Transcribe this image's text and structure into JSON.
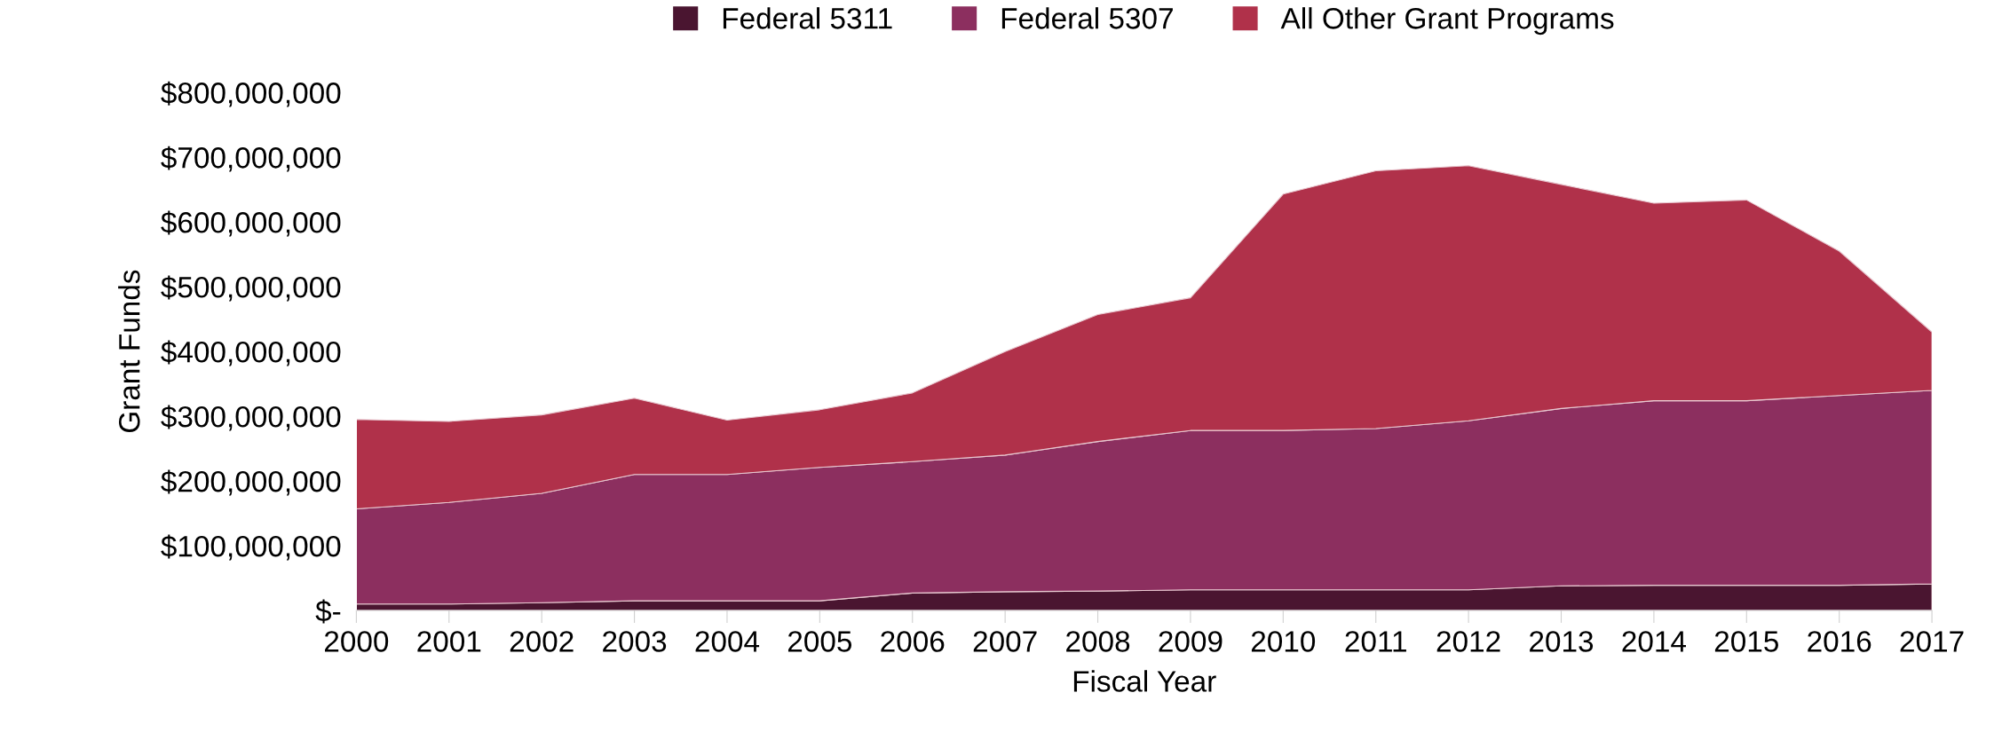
{
  "chart_data": {
    "type": "area",
    "stacked": true,
    "xlabel": "Fiscal Year",
    "ylabel": "Grant Funds",
    "categories": [
      "2000",
      "2001",
      "2002",
      "2003",
      "2004",
      "2005",
      "2006",
      "2007",
      "2008",
      "2009",
      "2010",
      "2011",
      "2012",
      "2013",
      "2014",
      "2015",
      "2016",
      "2017"
    ],
    "series": [
      {
        "name": "Federal 5311",
        "color": "#4a1530",
        "values": [
          10000000,
          10000000,
          12000000,
          15000000,
          15000000,
          15000000,
          27000000,
          29000000,
          30000000,
          32000000,
          32000000,
          32000000,
          32000000,
          38000000,
          39000000,
          39000000,
          39000000,
          41000000
        ]
      },
      {
        "name": "Federal 5307",
        "color": "#8c2f5f",
        "values": [
          147000000,
          157000000,
          169000000,
          195000000,
          195000000,
          206000000,
          203000000,
          211000000,
          231000000,
          246000000,
          246000000,
          249000000,
          261000000,
          274000000,
          285000000,
          285000000,
          293000000,
          299000000
        ]
      },
      {
        "name": "All Other Grant Programs",
        "color": "#b0314a",
        "values": [
          138000000,
          125000000,
          121000000,
          118000000,
          84000000,
          89000000,
          106000000,
          160000000,
          196000000,
          205000000,
          365000000,
          398000000,
          394000000,
          346000000,
          305000000,
          310000000,
          223000000,
          90000000
        ]
      }
    ],
    "ylim": [
      0,
      800000000
    ],
    "yticks": [
      {
        "value": 0,
        "label": "$-"
      },
      {
        "value": 100000000,
        "label": "$100,000,000"
      },
      {
        "value": 200000000,
        "label": "$200,000,000"
      },
      {
        "value": 300000000,
        "label": "$300,000,000"
      },
      {
        "value": 400000000,
        "label": "$400,000,000"
      },
      {
        "value": 500000000,
        "label": "$500,000,000"
      },
      {
        "value": 600000000,
        "label": "$600,000,000"
      },
      {
        "value": 700000000,
        "label": "$700,000,000"
      },
      {
        "value": 800000000,
        "label": "$800,000,000"
      }
    ],
    "grid": false,
    "legend": "top"
  }
}
